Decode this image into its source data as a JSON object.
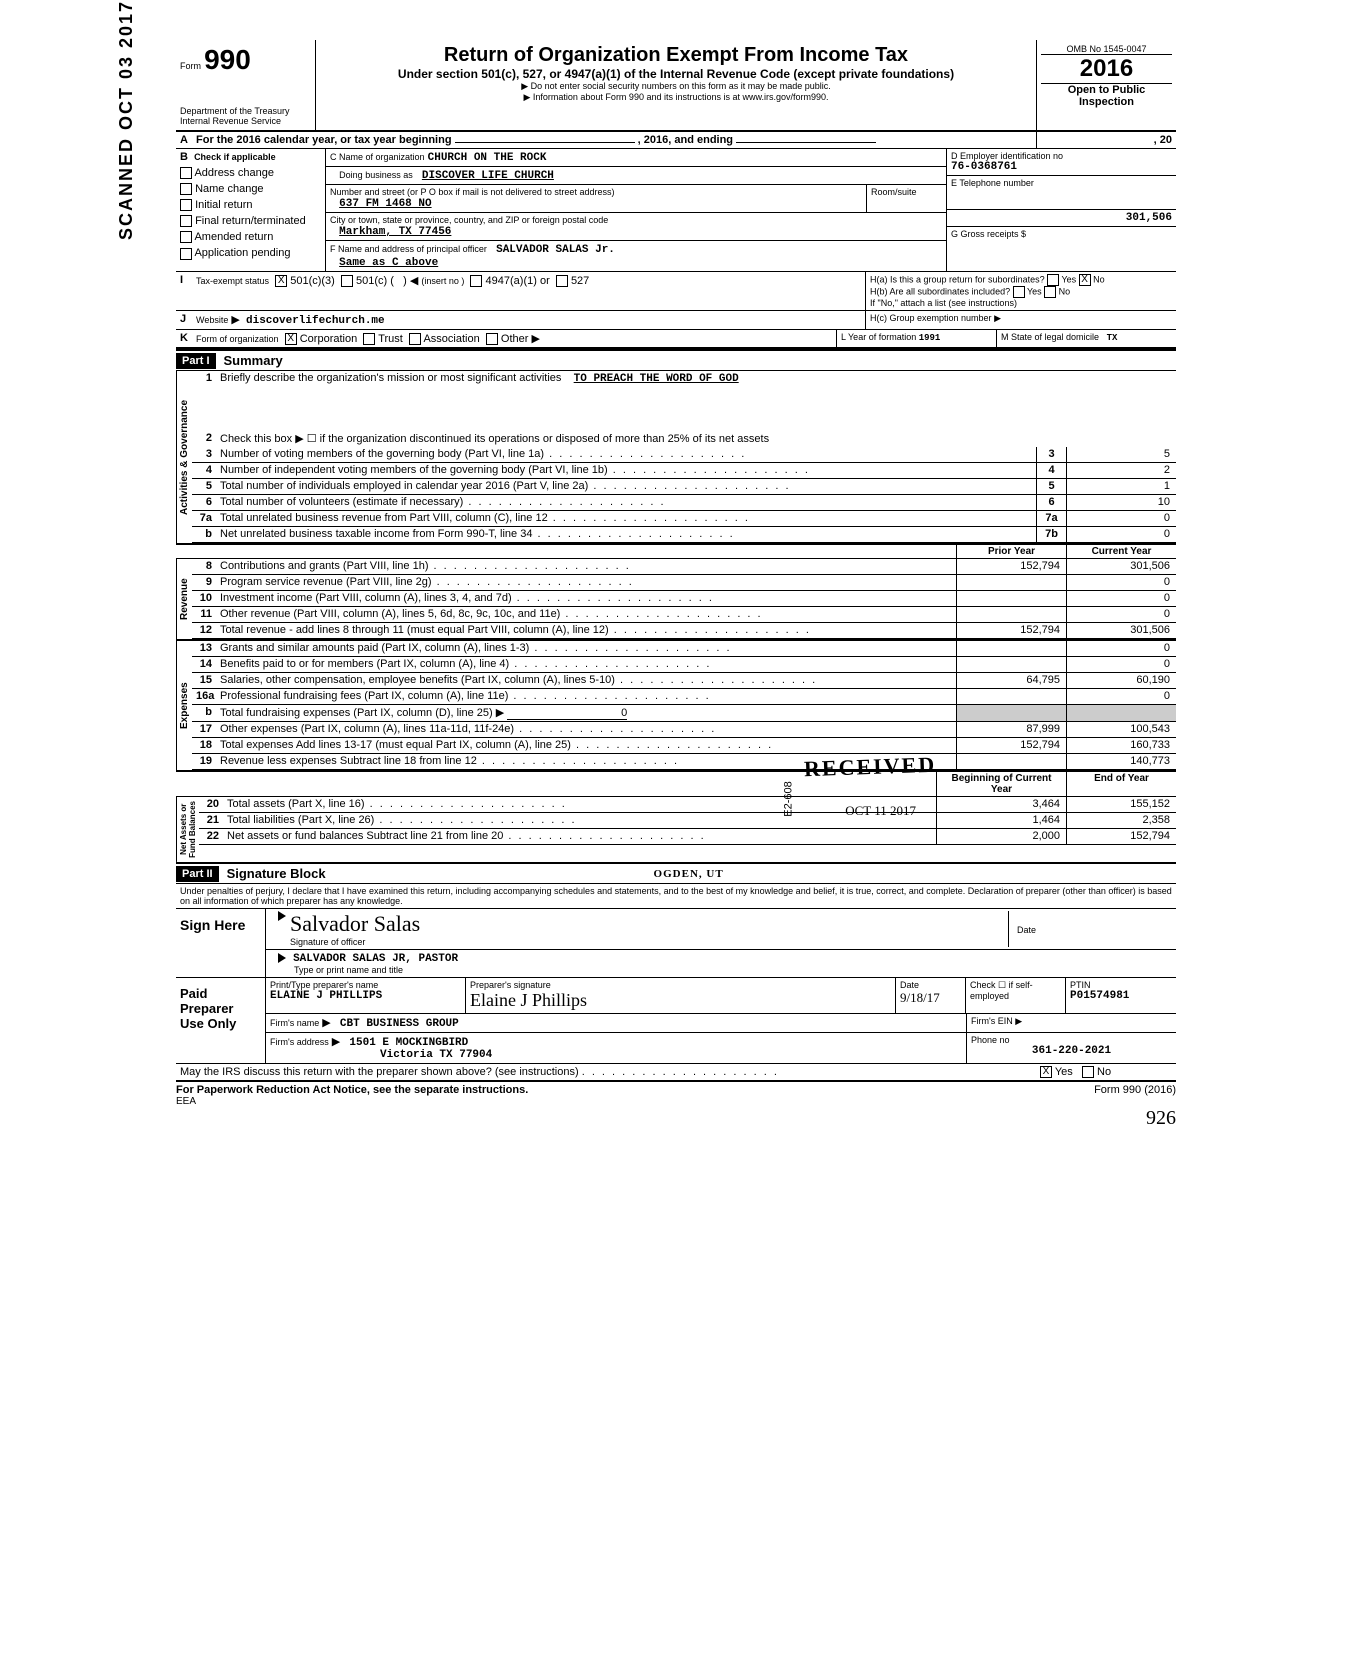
{
  "form": {
    "omb": "OMB No 1545-0047",
    "number": "990",
    "title": "Return of Organization Exempt From Income Tax",
    "subtitle": "Under section 501(c), 527, or 4947(a)(1) of the Internal Revenue Code (except private foundations)",
    "note1": "Do not enter social security numbers on this form as it may be made public.",
    "note2": "Information about Form 990 and its instructions is at www.irs.gov/form990.",
    "year": "2016",
    "dept": "Department of the Treasury",
    "irs": "Internal Revenue Service",
    "open": "Open to Public",
    "inspection": "Inspection"
  },
  "sectionA": {
    "label": "For the 2016 calendar year, or tax year beginning",
    "mid": ", 2016, and ending",
    "end": ", 20"
  },
  "sectionB": {
    "label": "Check if applicable",
    "opts": [
      "Address change",
      "Name change",
      "Initial return",
      "Final return/terminated",
      "Amended return",
      "Application pending"
    ]
  },
  "sectionC": {
    "name_label": "C  Name of organization",
    "name": "CHURCH ON THE ROCK",
    "dba_label": "Doing business as",
    "dba": "DISCOVER LIFE CHURCH",
    "street_label": "Number and street (or P O box if mail is not delivered to street address)",
    "street": "637 FM 1468 NO",
    "city_label": "City or town, state or province, country, and ZIP or foreign postal code",
    "city": "Markham, TX 77456",
    "room": "Room/suite"
  },
  "sectionD": {
    "label": "D  Employer identification no",
    "ein": "76-0368761"
  },
  "sectionE": {
    "label": "E  Telephone number",
    "phone": ""
  },
  "sectionF": {
    "label": "F  Name and address of principal officer",
    "name": "SALVADOR SALAS Jr.",
    "addr": "Same as C above"
  },
  "sectionG": {
    "label": "G  Gross receipts $",
    "val": "301,506"
  },
  "sectionH": {
    "a": "H(a) Is this a group return for subordinates?",
    "b": "H(b) Are all subordinates included?",
    "note": "If \"No,\" attach a list (see instructions)",
    "c": "H(c)  Group exemption number",
    "a_no_checked": true
  },
  "sectionI": {
    "label": "Tax-exempt status",
    "c3": "501(c)(3)",
    "c": "501(c) (",
    "insert": "(insert no )",
    "a1": "4947(a)(1) or",
    "s527": "527",
    "c3_checked": true
  },
  "sectionJ": {
    "label": "Website",
    "val": "discoverlifechurch.me"
  },
  "sectionK": {
    "label": "Form of organization",
    "opts": [
      "Corporation",
      "Trust",
      "Association",
      "Other"
    ],
    "corp_checked": true,
    "year_label": "L  Year of formation",
    "year": "1991",
    "state_label": "M  State of legal domicile",
    "state": "TX"
  },
  "part1": {
    "header": "Part I",
    "title": "Summary",
    "gov_label": "Activities & Governance",
    "rev_label": "Revenue",
    "exp_label": "Expenses",
    "net_label": "Net Assets or\nFund Balances",
    "l1": "Briefly describe the organization's mission or most significant activities",
    "l1v": "TO PREACH THE WORD OF GOD",
    "l2": "Check this box ▶ ☐ if the organization discontinued its operations or disposed of more than 25% of its net assets",
    "lines_gov": [
      {
        "n": "3",
        "d": "Number of voting members of the governing body (Part VI, line 1a)",
        "box": "3",
        "v": "5"
      },
      {
        "n": "4",
        "d": "Number of independent voting members of the governing body (Part VI, line 1b)",
        "box": "4",
        "v": "2"
      },
      {
        "n": "5",
        "d": "Total number of individuals employed in calendar year 2016 (Part V, line 2a)",
        "box": "5",
        "v": "1"
      },
      {
        "n": "6",
        "d": "Total number of volunteers (estimate if necessary)",
        "box": "6",
        "v": "10"
      },
      {
        "n": "7a",
        "d": "Total unrelated business revenue from Part VIII, column (C), line 12",
        "box": "7a",
        "v": "0"
      },
      {
        "n": "b",
        "d": "Net unrelated business taxable income from Form 990-T, line 34",
        "box": "7b",
        "v": "0"
      }
    ],
    "col_prior": "Prior Year",
    "col_curr": "Current Year",
    "lines_rev": [
      {
        "n": "8",
        "d": "Contributions and grants (Part VIII, line 1h)",
        "p": "152,794",
        "c": "301,506"
      },
      {
        "n": "9",
        "d": "Program service revenue (Part VIII, line 2g)",
        "p": "",
        "c": "0"
      },
      {
        "n": "10",
        "d": "Investment income (Part VIII, column (A), lines 3, 4, and 7d)",
        "p": "",
        "c": "0"
      },
      {
        "n": "11",
        "d": "Other revenue (Part VIII, column (A), lines 5, 6d, 8c, 9c, 10c, and 11e)",
        "p": "",
        "c": "0"
      },
      {
        "n": "12",
        "d": "Total revenue - add lines 8 through 11 (must equal Part VIII, column (A), line 12)",
        "p": "152,794",
        "c": "301,506"
      }
    ],
    "lines_exp": [
      {
        "n": "13",
        "d": "Grants and similar amounts paid (Part IX, column (A), lines 1-3)",
        "p": "",
        "c": "0"
      },
      {
        "n": "14",
        "d": "Benefits paid to or for members (Part IX, column (A), line 4)",
        "p": "",
        "c": "0"
      },
      {
        "n": "15",
        "d": "Salaries, other compensation, employee benefits (Part IX, column (A), lines 5-10)",
        "p": "64,795",
        "c": "60,190"
      },
      {
        "n": "16a",
        "d": "Professional fundraising fees (Part IX, column (A), line 11e)",
        "p": "",
        "c": "0"
      },
      {
        "n": "b",
        "d": "Total fundraising expenses (Part IX, column (D), line 25)  ▶",
        "inline": "0",
        "shade": true
      },
      {
        "n": "17",
        "d": "Other expenses (Part IX, column (A), lines 11a-11d, 11f-24e)",
        "p": "87,999",
        "c": "100,543"
      },
      {
        "n": "18",
        "d": "Total expenses  Add lines 13-17 (must equal Part IX, column (A), line 25)",
        "p": "152,794",
        "c": "160,733"
      },
      {
        "n": "19",
        "d": "Revenue less expenses  Subtract line 18 from line 12",
        "p": "",
        "c": "140,773"
      }
    ],
    "col_begin": "Beginning of Current Year",
    "col_end": "End of Year",
    "lines_net": [
      {
        "n": "20",
        "d": "Total assets (Part X, line 16)",
        "p": "3,464",
        "c": "155,152"
      },
      {
        "n": "21",
        "d": "Total liabilities (Part X, line 26)",
        "p": "1,464",
        "c": "2,358"
      },
      {
        "n": "22",
        "d": "Net assets or fund balances  Subtract line 21 from line 20",
        "p": "2,000",
        "c": "152,794"
      }
    ]
  },
  "part2": {
    "header": "Part II",
    "title": "Signature Block",
    "perjury": "Under penalties of perjury, I declare that I have examined this return, including accompanying schedules and statements, and to the best of my knowledge and belief, it is true, correct, and complete. Declaration of preparer (other than officer) is based on all information of which preparer has any knowledge.",
    "sign_here": "Sign Here",
    "sig_label": "Signature of officer",
    "sig_script": "Salvador Salas",
    "date_label": "Date",
    "officer_name": "SALVADOR SALAS JR, PASTOR",
    "officer_type": "Type or print name and title",
    "paid": "Paid Preparer Use Only",
    "prep_name_label": "Print/Type preparer's name",
    "prep_name": "ELAINE J PHILLIPS",
    "prep_sig_label": "Preparer's signature",
    "prep_date": "9/18/17",
    "check_label": "Check ☐ if self-employed",
    "ptin_label": "PTIN",
    "ptin": "P01574981",
    "firm_label": "Firm's name",
    "firm": "CBT BUSINESS GROUP",
    "firm_ein_label": "Firm's EIN",
    "firm_addr_label": "Firm's address",
    "firm_addr1": "1501 E MOCKINGBIRD",
    "firm_addr2": "Victoria TX 77904",
    "phone_label": "Phone no",
    "phone": "361-220-2021",
    "discuss": "May the IRS discuss this return with the preparer shown above? (see instructions)",
    "yes_checked": true
  },
  "footer": {
    "pra": "For Paperwork Reduction Act Notice, see the separate instructions.",
    "eea": "EEA",
    "form": "Form 990 (2016)"
  },
  "stamps": {
    "scanned": "SCANNED OCT 03 2017",
    "received": "RECEIVED",
    "received_date": "OCT 11 2017",
    "received_org": "OGDEN, UT",
    "e2608": "E2-608",
    "handwritten": "926"
  }
}
